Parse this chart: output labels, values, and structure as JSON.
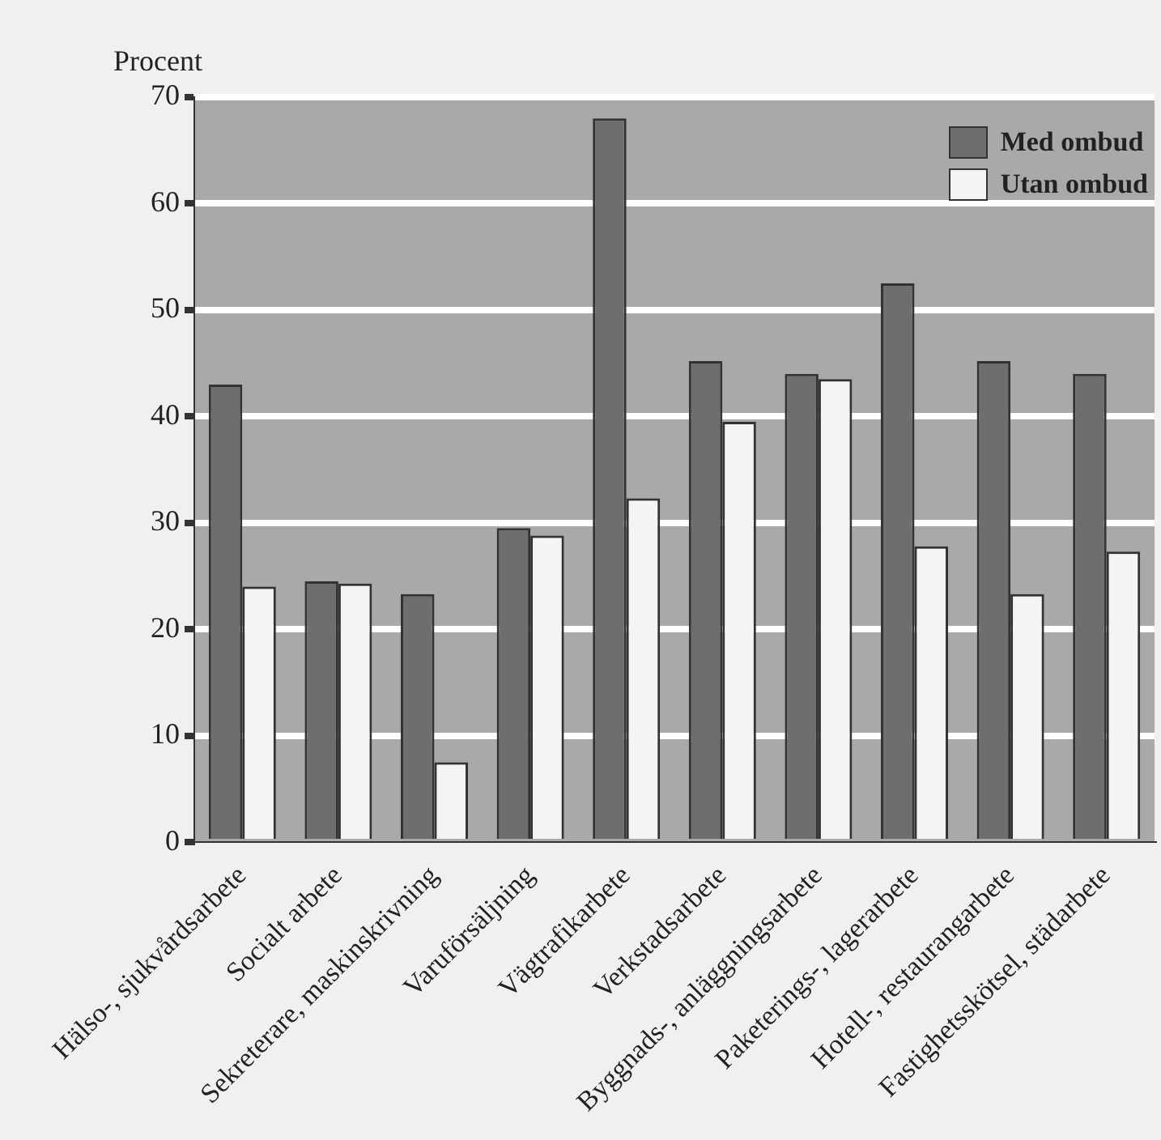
{
  "chart_data": {
    "type": "bar",
    "ylabel": "Procent",
    "categories": [
      "Hälso-, sjukvårdsarbete",
      "Socialt arbete",
      "Sekreterare, maskinskrivning",
      "Varuförsäljning",
      "Vägtrafikarbete",
      "Verkstadsarbete",
      "Byggnads-, anläggningsarbete",
      "Paketerings-, lagerarbete",
      "Hotell-, restaurangarbete",
      "Fastighetsskötsel, städarbete"
    ],
    "series": [
      {
        "name": "Med ombud",
        "color": "#6e6e6e",
        "values": [
          43,
          24.5,
          23.3,
          29.5,
          68,
          45.2,
          44,
          52.5,
          45.2,
          44
        ]
      },
      {
        "name": "Utan ombud",
        "color": "#f4f4f4",
        "values": [
          24,
          24.3,
          7.5,
          28.8,
          32.3,
          39.5,
          43.5,
          27.8,
          23.3,
          27.3
        ]
      }
    ],
    "ylim": [
      0,
      70
    ],
    "yticks": [
      0,
      10,
      20,
      30,
      40,
      50,
      60,
      70
    ],
    "grid": "y",
    "legend": "top right"
  }
}
